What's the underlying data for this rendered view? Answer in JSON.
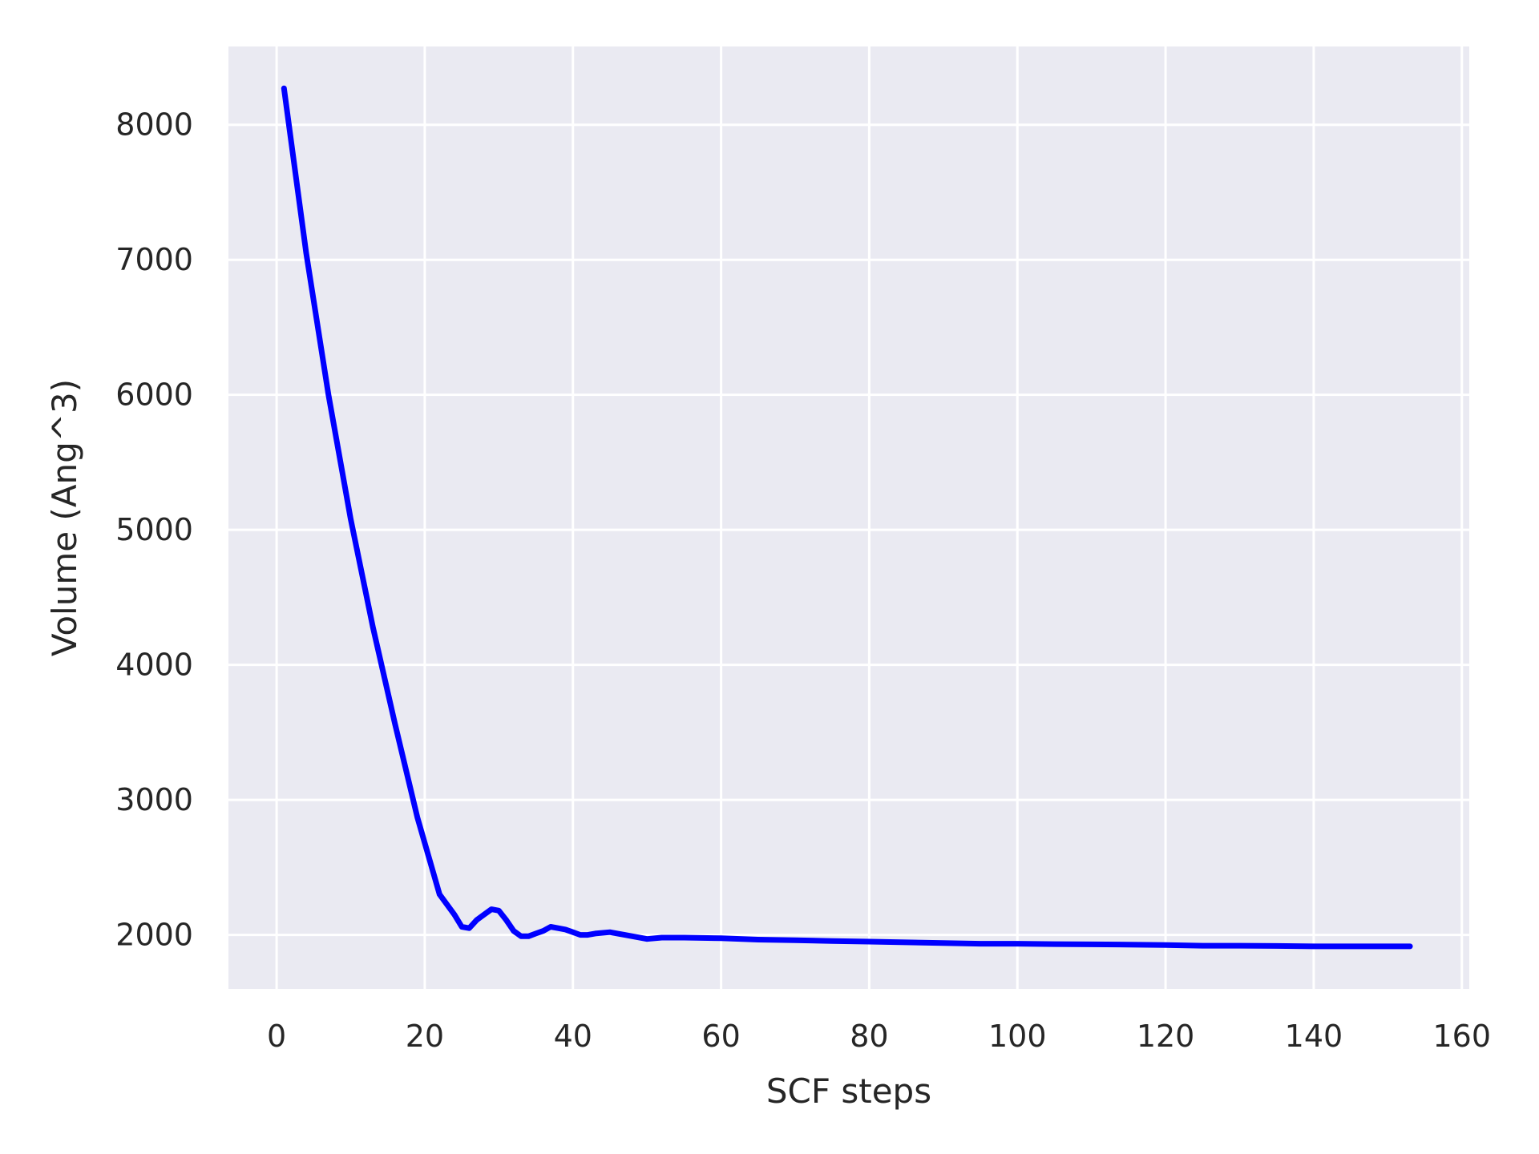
{
  "chart_data": {
    "type": "line",
    "title": "",
    "xlabel": "SCF steps",
    "ylabel": "Volume (Ang^3)",
    "xlim": [
      -6.5,
      161
    ],
    "ylim": [
      1600,
      8580
    ],
    "xticks": [
      0,
      20,
      40,
      60,
      80,
      100,
      120,
      140,
      160
    ],
    "yticks": [
      2000,
      3000,
      4000,
      5000,
      6000,
      7000,
      8000
    ],
    "grid": true,
    "background": "#eaeaf2",
    "series": [
      {
        "color": "#0000ff",
        "x": [
          1,
          4,
          7,
          10,
          13,
          16,
          19,
          22,
          24,
          25,
          26,
          27,
          28,
          29,
          30,
          31,
          32,
          33,
          34,
          35,
          36,
          37,
          38,
          39,
          40,
          41,
          42,
          43,
          45,
          47,
          50,
          52,
          55,
          60,
          65,
          70,
          75,
          80,
          85,
          90,
          95,
          100,
          105,
          110,
          115,
          120,
          125,
          130,
          135,
          140,
          145,
          150,
          153
        ],
        "values": [
          8270,
          7050,
          6000,
          5080,
          4280,
          3560,
          2870,
          2300,
          2150,
          2060,
          2050,
          2110,
          2150,
          2190,
          2180,
          2110,
          2030,
          1990,
          1990,
          2010,
          2030,
          2060,
          2050,
          2040,
          2020,
          2000,
          2000,
          2010,
          2020,
          2000,
          1970,
          1980,
          1980,
          1975,
          1965,
          1960,
          1955,
          1950,
          1945,
          1940,
          1935,
          1935,
          1932,
          1930,
          1928,
          1925,
          1920,
          1920,
          1918,
          1915,
          1915,
          1915,
          1915
        ]
      }
    ]
  }
}
